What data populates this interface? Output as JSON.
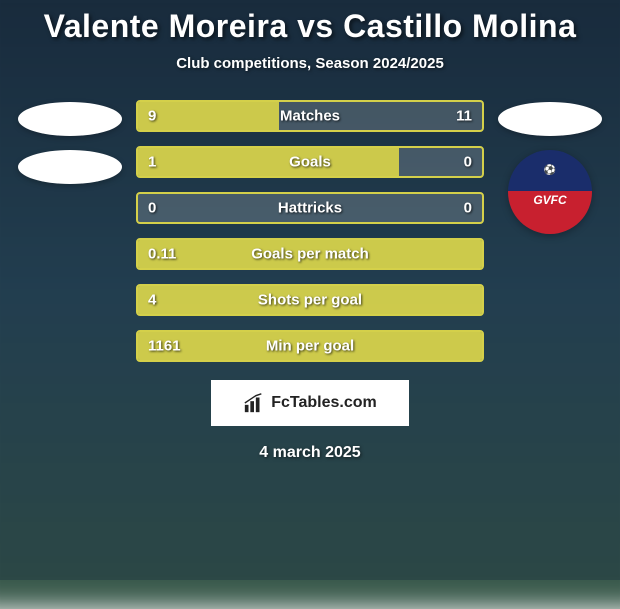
{
  "title": "Valente Moreira vs Castillo Molina",
  "subtitle": "Club competitions, Season 2024/2025",
  "footer_brand": "FcTables.com",
  "footer_date": "4 march 2025",
  "colors": {
    "bar_accent": "#d4d04a",
    "bar_border": "#d4d04a",
    "bar_bg": "rgba(255,255,255,0.18)",
    "text": "#ffffff",
    "badge_top": "#1a2d6b",
    "badge_bot": "#c8202f"
  },
  "right_badge": {
    "top_text": "⚽",
    "bot_text": "GVFC"
  },
  "stats": [
    {
      "label": "Matches",
      "left_val": "9",
      "right_val": "11",
      "left_pct": 41,
      "right_pct": 0
    },
    {
      "label": "Goals",
      "left_val": "1",
      "right_val": "0",
      "left_pct": 76,
      "right_pct": 0
    },
    {
      "label": "Hattricks",
      "left_val": "0",
      "right_val": "0",
      "left_pct": 0,
      "right_pct": 0
    },
    {
      "label": "Goals per match",
      "left_val": "0.11",
      "right_val": "",
      "left_pct": 100,
      "right_pct": 0
    },
    {
      "label": "Shots per goal",
      "left_val": "4",
      "right_val": "",
      "left_pct": 100,
      "right_pct": 0
    },
    {
      "label": "Min per goal",
      "left_val": "1161",
      "right_val": "",
      "left_pct": 100,
      "right_pct": 0
    }
  ]
}
